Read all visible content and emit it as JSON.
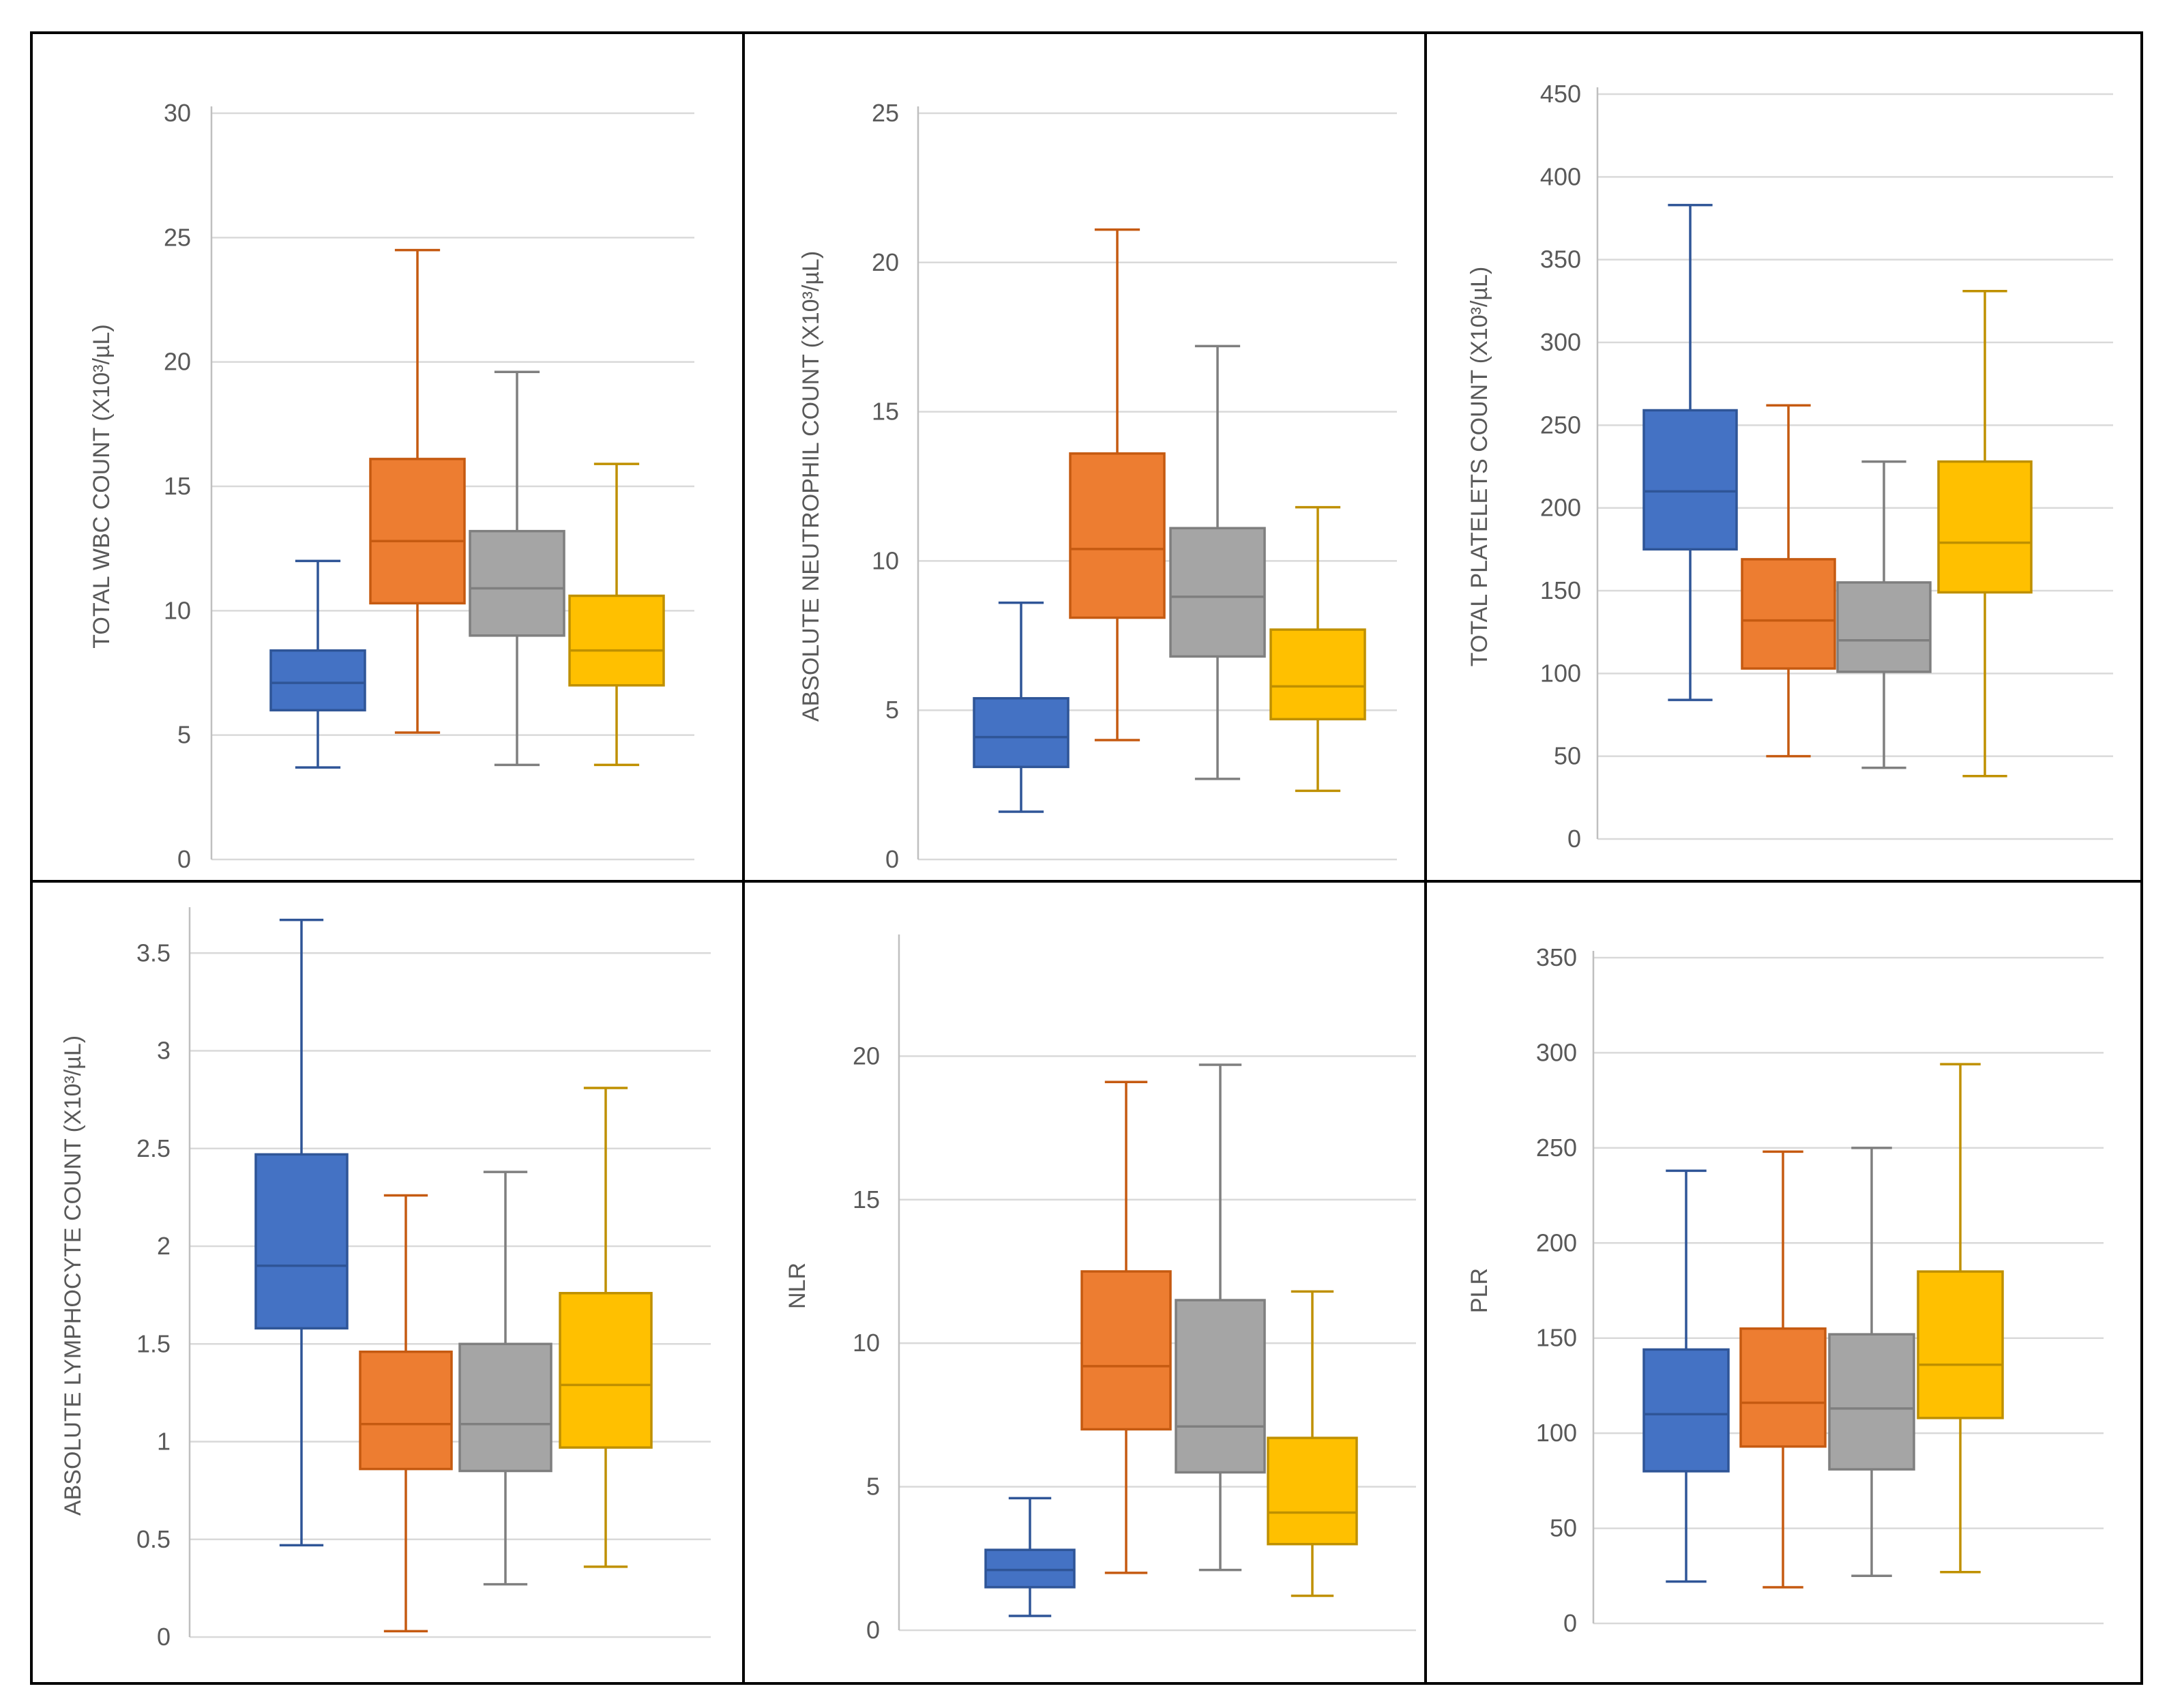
{
  "colors": {
    "group1": "#4472c4",
    "group1_line": "#2f5597",
    "group2": "#ed7d31",
    "group2_line": "#c55a11",
    "group3": "#a5a5a5",
    "group3_line": "#7f7f7f",
    "group4": "#ffc000",
    "group4_line": "#bf9000"
  },
  "chart_data": [
    {
      "type": "box",
      "ylabel": "TOTAL WBC COUNT (X10³/µL)",
      "ylim": [
        0,
        30
      ],
      "yticks": [
        0,
        5,
        10,
        15,
        20,
        25,
        30
      ],
      "grid": true,
      "series": [
        {
          "min": 3.7,
          "q1": 6.0,
          "median": 7.1,
          "q3": 8.4,
          "max": 12.0
        },
        {
          "min": 5.1,
          "q1": 10.3,
          "median": 12.8,
          "q3": 16.1,
          "max": 24.5
        },
        {
          "min": 3.8,
          "q1": 9.0,
          "median": 10.9,
          "q3": 13.2,
          "max": 19.6
        },
        {
          "min": 3.8,
          "q1": 7.0,
          "median": 8.4,
          "q3": 10.6,
          "max": 15.9
        }
      ]
    },
    {
      "type": "box",
      "ylabel": "ABSOLUTE NEUTROPHIL COUNT (X10³/µL)",
      "ylim": [
        0,
        25
      ],
      "yticks": [
        0,
        5,
        10,
        15,
        20,
        25
      ],
      "grid": true,
      "series": [
        {
          "min": 1.6,
          "q1": 3.1,
          "median": 4.1,
          "q3": 5.4,
          "max": 8.6
        },
        {
          "min": 4.0,
          "q1": 8.1,
          "median": 10.4,
          "q3": 13.6,
          "max": 21.1
        },
        {
          "min": 2.7,
          "q1": 6.8,
          "median": 8.8,
          "q3": 11.1,
          "max": 17.2
        },
        {
          "min": 2.3,
          "q1": 4.7,
          "median": 5.8,
          "q3": 7.7,
          "max": 11.8
        }
      ]
    },
    {
      "type": "box",
      "ylabel": "TOTAL PLATELETS COUNT (X10³/µL)",
      "ylim": [
        0,
        450
      ],
      "yticks": [
        0,
        50,
        100,
        150,
        200,
        250,
        300,
        350,
        400,
        450
      ],
      "grid": true,
      "series": [
        {
          "min": 84,
          "q1": 175,
          "median": 210,
          "q3": 259,
          "max": 383
        },
        {
          "min": 50,
          "q1": 103,
          "median": 132,
          "q3": 169,
          "max": 262
        },
        {
          "min": 43,
          "q1": 101,
          "median": 120,
          "q3": 155,
          "max": 228
        },
        {
          "min": 38,
          "q1": 149,
          "median": 179,
          "q3": 228,
          "max": 331
        }
      ]
    },
    {
      "type": "box",
      "ylabel": "ABSOLUTE LYMPHOCYTE COUNT (X10³/µL)",
      "ylim": [
        0,
        3.7
      ],
      "yticks": [
        0,
        0.5,
        1,
        1.5,
        2,
        2.5,
        3,
        3.5
      ],
      "grid": true,
      "series": [
        {
          "min": 0.47,
          "q1": 1.58,
          "median": 1.9,
          "q3": 2.47,
          "max": 3.67
        },
        {
          "min": 0.03,
          "q1": 0.86,
          "median": 1.09,
          "q3": 1.46,
          "max": 2.26
        },
        {
          "min": 0.27,
          "q1": 0.85,
          "median": 1.09,
          "q3": 1.5,
          "max": 2.38
        },
        {
          "min": 0.36,
          "q1": 0.97,
          "median": 1.29,
          "q3": 1.76,
          "max": 2.81
        }
      ]
    },
    {
      "type": "box",
      "ylabel": "NLR",
      "ylim": [
        0,
        24
      ],
      "yticks": [
        0,
        5,
        10,
        15,
        20
      ],
      "grid": true,
      "series": [
        {
          "min": 0.5,
          "q1": 1.5,
          "median": 2.1,
          "q3": 2.8,
          "max": 4.6
        },
        {
          "min": 2.0,
          "q1": 7.0,
          "median": 9.2,
          "q3": 12.5,
          "max": 19.1
        },
        {
          "min": 2.1,
          "q1": 5.5,
          "median": 7.1,
          "q3": 11.5,
          "max": 19.7
        },
        {
          "min": 1.2,
          "q1": 3.0,
          "median": 4.1,
          "q3": 6.7,
          "max": 11.8
        }
      ]
    },
    {
      "type": "box",
      "ylabel": "PLR",
      "ylim": [
        0,
        350
      ],
      "yticks": [
        0,
        50,
        100,
        150,
        200,
        250,
        300,
        350
      ],
      "grid": true,
      "series": [
        {
          "min": 22,
          "q1": 80,
          "median": 110,
          "q3": 144,
          "max": 238
        },
        {
          "min": 19,
          "q1": 93,
          "median": 116,
          "q3": 155,
          "max": 248
        },
        {
          "min": 25,
          "q1": 81,
          "median": 113,
          "q3": 152,
          "max": 250
        },
        {
          "min": 27,
          "q1": 108,
          "median": 136,
          "q3": 185,
          "max": 294
        }
      ]
    }
  ]
}
